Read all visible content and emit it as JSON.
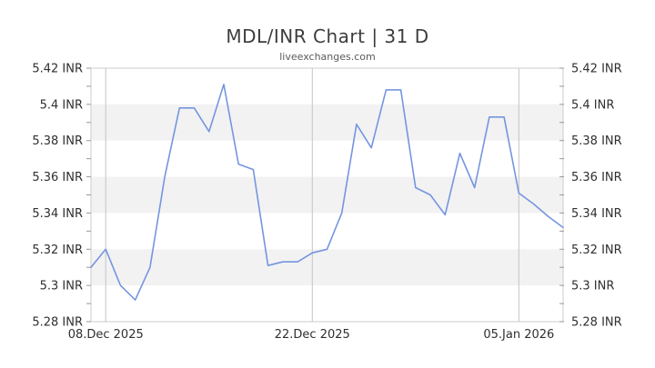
{
  "header": {
    "title": "MDL/INR Chart | 31 D",
    "subtitle": "liveexchanges.com"
  },
  "chart_data": {
    "type": "line",
    "title": "MDL/INR Chart | 31 D",
    "subtitle": "liveexchanges.com",
    "legend": "none",
    "grid": "alternating horizontal bands every 0.02 INR; vertical gridlines at labeled dates",
    "series": [
      {
        "name": "MDL/INR",
        "values": [
          5.31,
          5.32,
          5.3,
          5.292,
          5.31,
          5.36,
          5.398,
          5.398,
          5.385,
          5.411,
          5.367,
          5.364,
          5.311,
          5.313,
          5.313,
          5.318,
          5.32,
          5.34,
          5.389,
          5.376,
          5.408,
          5.408,
          5.354,
          5.35,
          5.339,
          5.373,
          5.354,
          5.393,
          5.393,
          5.351,
          5.345,
          5.338,
          5.332
        ]
      }
    ],
    "x_ticks": [
      {
        "index": 1,
        "label": "08.Dec 2025"
      },
      {
        "index": 15,
        "label": "22.Dec 2025"
      },
      {
        "index": 29,
        "label": "05.Jan 2026"
      }
    ],
    "y_axis": {
      "min": 5.28,
      "max": 5.42,
      "tick_step": 0.01,
      "label_step": 0.02,
      "labels": [
        "5.28 INR",
        "5.3 INR",
        "5.32 INR",
        "5.34 INR",
        "5.36 INR",
        "5.38 INR",
        "5.4 INR",
        "5.42 INR"
      ],
      "sides": "both"
    },
    "shaded_bands": [
      [
        5.3,
        5.32
      ],
      [
        5.34,
        5.36
      ],
      [
        5.38,
        5.4
      ]
    ],
    "colors": {
      "line": "#7595e0",
      "band": "#f2f2f2",
      "gridline": "#c4c4c4",
      "border": "#cccccc",
      "tick": "#999999",
      "label": "#2f2f2f",
      "title": "#3d3d3d",
      "subtitle": "#5a5a5a",
      "background": "#ffffff"
    }
  }
}
